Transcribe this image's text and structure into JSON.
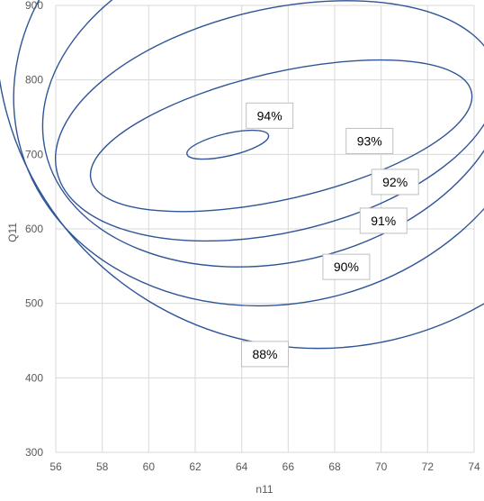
{
  "chart_data": {
    "type": "contour",
    "title": "",
    "xlabel": "n11",
    "ylabel": "Q11",
    "xlim": [
      56,
      74
    ],
    "ylim": [
      300,
      900
    ],
    "x_ticks": [
      "56",
      "58",
      "60",
      "62",
      "64",
      "66",
      "68",
      "70",
      "72",
      "74"
    ],
    "y_ticks": [
      "300",
      "400",
      "500",
      "600",
      "700",
      "800",
      "900"
    ],
    "grid": "vertical and horizontal",
    "line_color": "#2f5597",
    "series": [
      {
        "name": "88%",
        "center": [
          67.4,
          870
        ],
        "semi_axes": [
          14.0,
          430
        ],
        "label_at": [
          65.0,
          432
        ]
      },
      {
        "name": "90%",
        "center": [
          65.6,
          800
        ],
        "semi_axes": [
          11.5,
          300
        ],
        "label_at": [
          68.5,
          549
        ]
      },
      {
        "name": "91%",
        "center": [
          65.5,
          775
        ],
        "semi_axes": [
          10.2,
          220
        ],
        "label_at": [
          70.1,
          611
        ]
      },
      {
        "name": "92%",
        "center": [
          65.5,
          745
        ],
        "semi_axes": [
          9.7,
          150
        ],
        "label_at": [
          70.6,
          663
        ]
      },
      {
        "name": "93%",
        "center": [
          65.7,
          725
        ],
        "semi_axes": [
          8.4,
          85
        ],
        "label_at": [
          69.5,
          718
        ]
      },
      {
        "name": "94%",
        "center": [
          63.4,
          713
        ],
        "semi_axes": [
          1.8,
          15
        ],
        "label_at": [
          65.2,
          752
        ]
      }
    ]
  }
}
